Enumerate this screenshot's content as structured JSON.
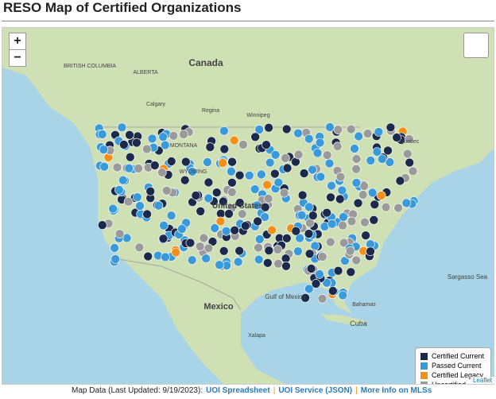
{
  "header": {
    "title": "RESO Map of Certified Organizations"
  },
  "zoom": {
    "in": "+",
    "out": "−"
  },
  "map_labels": [
    "Canada",
    "BRITISH COLUMBIA",
    "ALBERTA",
    "Calgary",
    "Regina",
    "Winnipeg",
    "Quebec",
    "MONTANA",
    "WYOMING",
    "United States",
    "Mexico",
    "Gulf of Mexico",
    "Cuba",
    "Bahamas",
    "Sargasso Sea",
    "Xalapa"
  ],
  "legend": {
    "items": [
      {
        "label": "Certified Current",
        "color": "#1b2a4a"
      },
      {
        "label": "Passed Current",
        "color": "#3a9ad9"
      },
      {
        "label": "Certified Legacy",
        "color": "#f39019"
      },
      {
        "label": "Uncertified",
        "color": "#9a9a9a"
      }
    ]
  },
  "footer": {
    "text": "Map Data (Last Updated: 9/19/2023):",
    "links": [
      "UOI Spreadsheet",
      "UOI Service (JSON)",
      "More Info on MLSs"
    ]
  },
  "attribution": "Leaflet"
}
